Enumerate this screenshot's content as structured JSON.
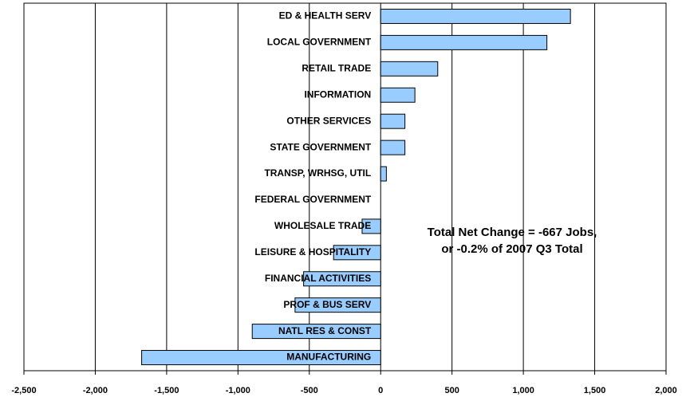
{
  "chart_data": {
    "type": "barh",
    "categories": [
      "ED & HEALTH SERV",
      "LOCAL GOVERNMENT",
      "RETAIL TRADE",
      "INFORMATION",
      "OTHER SERVICES",
      "STATE GOVERNMENT",
      "TRANSP, WRHSG, UTIL",
      "FEDERAL GOVERNMENT",
      "WHOLESALE TRADE",
      "LEISURE & HOSPITALITY",
      "FINANCIAL ACTIVITIES",
      "PROF & BUS SERV",
      "NATL RES & CONST",
      "MANUFACTURING"
    ],
    "values": [
      1330,
      1165,
      400,
      240,
      170,
      170,
      40,
      0,
      -130,
      -330,
      -540,
      -600,
      -900,
      -1675
    ],
    "color": "#99ccff",
    "xlim": [
      -2500,
      2000
    ],
    "xticks": [
      {
        "value": -2500,
        "label": "-2,500"
      },
      {
        "value": -2000,
        "label": "-2,000"
      },
      {
        "value": -1500,
        "label": "-1,500"
      },
      {
        "value": -1000,
        "label": "-1,000"
      },
      -500,
      0,
      500,
      {
        "value": 1000,
        "label": "1,000"
      },
      {
        "value": 1500,
        "label": "1,500"
      },
      {
        "value": 2000,
        "label": "2,000"
      }
    ],
    "grid": true,
    "annotations": [
      "Total Net Change = -667 Jobs,",
      "or -0.2% of 2007 Q3 Total"
    ]
  }
}
